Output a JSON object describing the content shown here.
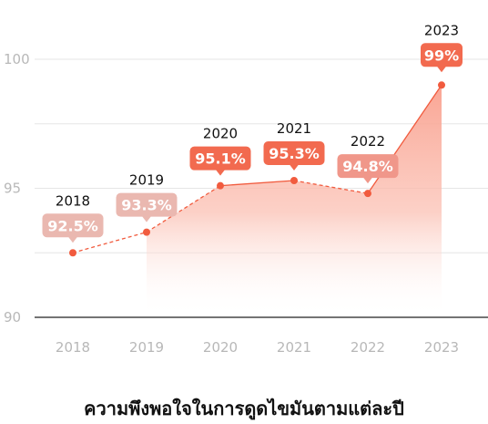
{
  "chart_data": {
    "type": "area",
    "title": "ความพึงพอใจในการดูดไขมันตามแต่ละปี",
    "categories": [
      "2018",
      "2019",
      "2020",
      "2021",
      "2022",
      "2023"
    ],
    "series": [
      {
        "values": [
          92.5,
          93.3,
          95.1,
          95.3,
          94.8,
          99
        ],
        "labels": [
          "92.5%",
          "93.3%",
          "95.1%",
          "95.3%",
          "94.8%",
          "99%"
        ]
      }
    ],
    "ylim": [
      90,
      100
    ],
    "yticks": [
      "90",
      "95",
      "100"
    ],
    "grid": true,
    "colors": {
      "line": "#f15b3e",
      "point": "#f15b3e",
      "fill": "#f9a08e",
      "badge_strong": "#f26a4f",
      "badge_mid": "#f0978a",
      "badge_light": "#eab8b0",
      "grid": "#e6e6e6",
      "axis": "#222222",
      "tick": "#b8b8b8"
    }
  }
}
